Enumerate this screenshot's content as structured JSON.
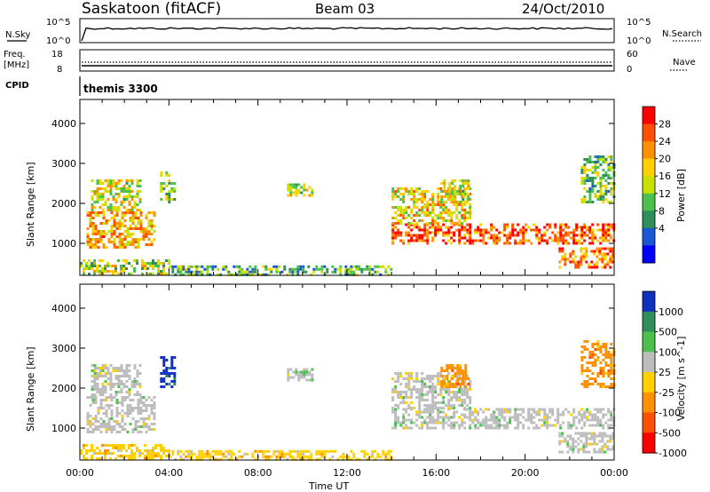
{
  "header": {
    "title": "Saskatoon (fitACF)",
    "beam": "Beam 03",
    "date": "24/Oct/2010"
  },
  "top_panels": {
    "noise": {
      "left_label": "N.Sky",
      "right_label": "N.Search",
      "left_ticks": [
        "10^5",
        "10^0"
      ],
      "right_ticks": [
        "10^5",
        "10^0"
      ]
    },
    "freq": {
      "left_label_1": "Freq.",
      "left_label_2": "[MHz]",
      "right_label": "Nave",
      "left_ticks": [
        "18",
        "8"
      ],
      "right_ticks": [
        "60",
        "0"
      ]
    },
    "cpid": {
      "label": "CPID",
      "value": "themis 3300"
    }
  },
  "chart_data": [
    {
      "type": "heatmap",
      "quantity": "Power",
      "ylabel": "Slant Range [km]",
      "ylim": [
        200,
        4600
      ],
      "yticks": [
        "1000",
        "2000",
        "3000",
        "4000"
      ],
      "colorbar_label": "Power [dB]",
      "colorbar_ticks": [
        "4",
        "8",
        "12",
        "16",
        "20",
        "24",
        "28"
      ],
      "colorbar_colors": [
        "#0000ff",
        "#1a56d6",
        "#2f8f5a",
        "#4cc04c",
        "#c8e000",
        "#ffd000",
        "#ff9000",
        "#ff5000",
        "#ff0000"
      ],
      "regions": [
        {
          "t0": 0.0,
          "t1": 4.0,
          "r0": 200,
          "r1": 600,
          "level": 0.5
        },
        {
          "t0": 0.3,
          "t1": 3.3,
          "r0": 900,
          "r1": 1800,
          "level": 0.7
        },
        {
          "t0": 0.5,
          "t1": 2.7,
          "r0": 1800,
          "r1": 2600,
          "level": 0.55
        },
        {
          "t0": 3.6,
          "t1": 4.3,
          "r0": 2000,
          "r1": 2800,
          "level": 0.4
        },
        {
          "t0": 4.0,
          "t1": 14.0,
          "r0": 200,
          "r1": 450,
          "level": 0.35
        },
        {
          "t0": 9.3,
          "t1": 10.4,
          "r0": 2200,
          "r1": 2500,
          "level": 0.5
        },
        {
          "t0": 14.0,
          "t1": 24.0,
          "r0": 1000,
          "r1": 1500,
          "level": 0.85
        },
        {
          "t0": 14.0,
          "t1": 17.5,
          "r0": 1500,
          "r1": 2400,
          "level": 0.6
        },
        {
          "t0": 16.2,
          "t1": 17.4,
          "r0": 2000,
          "r1": 2600,
          "level": 0.55
        },
        {
          "t0": 21.5,
          "t1": 24.0,
          "r0": 400,
          "r1": 900,
          "level": 0.8
        },
        {
          "t0": 22.5,
          "t1": 24.0,
          "r0": 2000,
          "r1": 3200,
          "level": 0.4
        }
      ]
    },
    {
      "type": "heatmap",
      "quantity": "Velocity",
      "ylabel": "Slant Range [km]",
      "ylim": [
        200,
        4600
      ],
      "yticks": [
        "1000",
        "2000",
        "3000",
        "4000"
      ],
      "colorbar_label": "Velocity [m s^-1]",
      "colorbar_ticks": [
        "1000",
        "500",
        "100",
        "25",
        "-25",
        "-100",
        "-500",
        "-1000"
      ],
      "colorbar_colors": [
        "#1030c0",
        "#2f8f5a",
        "#4cc04c",
        "#bdbdbd",
        "#ffd000",
        "#ff9000",
        "#ff5000",
        "#ff0000"
      ],
      "regions": [
        {
          "t0": 0.0,
          "t1": 4.0,
          "r0": 200,
          "r1": 600,
          "color_index": 4
        },
        {
          "t0": 0.3,
          "t1": 3.3,
          "r0": 900,
          "r1": 1800,
          "color_index": 3
        },
        {
          "t0": 0.5,
          "t1": 2.7,
          "r0": 1800,
          "r1": 2600,
          "color_index": 3
        },
        {
          "t0": 3.6,
          "t1": 4.3,
          "r0": 2000,
          "r1": 2800,
          "color_index": 0
        },
        {
          "t0": 4.0,
          "t1": 14.0,
          "r0": 200,
          "r1": 450,
          "color_index": 4
        },
        {
          "t0": 9.3,
          "t1": 10.4,
          "r0": 2200,
          "r1": 2500,
          "color_index": 3
        },
        {
          "t0": 14.0,
          "t1": 24.0,
          "r0": 1000,
          "r1": 1500,
          "color_index": 3
        },
        {
          "t0": 14.0,
          "t1": 17.5,
          "r0": 1500,
          "r1": 2400,
          "color_index": 3
        },
        {
          "t0": 16.2,
          "t1": 17.4,
          "r0": 2000,
          "r1": 2600,
          "color_index": 5
        },
        {
          "t0": 21.5,
          "t1": 24.0,
          "r0": 400,
          "r1": 900,
          "color_index": 3
        },
        {
          "t0": 22.5,
          "t1": 24.0,
          "r0": 2000,
          "r1": 3200,
          "color_index": 5
        }
      ]
    }
  ],
  "x_axis": {
    "xlabel": "Time UT",
    "xlim": [
      0,
      24
    ],
    "tick_hours": [
      0,
      4,
      8,
      12,
      16,
      20,
      24
    ],
    "tick_labels": [
      "00:00",
      "04:00",
      "08:00",
      "12:00",
      "16:00",
      "20:00",
      "00:00"
    ]
  }
}
